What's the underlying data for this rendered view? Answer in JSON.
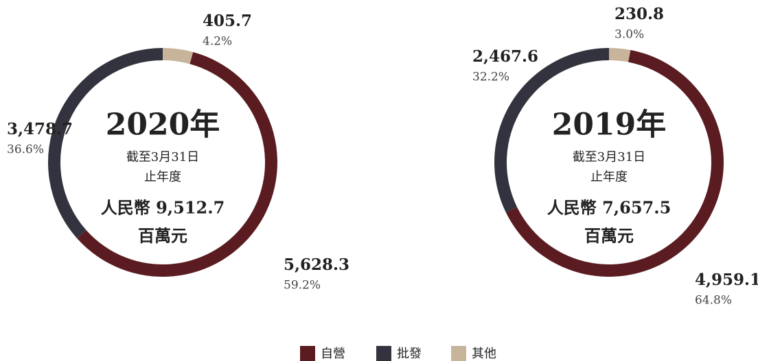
{
  "chart_data": [
    {
      "type": "pie",
      "title": "2020年",
      "subtitle": [
        "截至3月31日",
        "止年度"
      ],
      "total_label": "人民幣 9,512.7",
      "unit": "百萬元",
      "categories": [
        "自營",
        "批發",
        "其他"
      ],
      "values": [
        5628.3,
        3478.7,
        405.7
      ],
      "value_labels": [
        "5,628.3",
        "3,478.7",
        "405.7"
      ],
      "share_labels": [
        "59.2%",
        "36.6%",
        "4.2%"
      ],
      "colors": [
        "#5a1c20",
        "#33333f",
        "#c8b49b"
      ]
    },
    {
      "type": "pie",
      "title": "2019年",
      "subtitle": [
        "截至3月31日",
        "止年度"
      ],
      "total_label": "人民幣 7,657.5",
      "unit": "百萬元",
      "categories": [
        "自營",
        "批發",
        "其他"
      ],
      "values": [
        4959.1,
        2467.6,
        230.8
      ],
      "value_labels": [
        "4,959.1",
        "2,467.6",
        "230.8"
      ],
      "share_labels": [
        "64.8%",
        "32.2%",
        "3.0%"
      ],
      "colors": [
        "#5a1c20",
        "#33333f",
        "#c8b49b"
      ]
    }
  ]
}
